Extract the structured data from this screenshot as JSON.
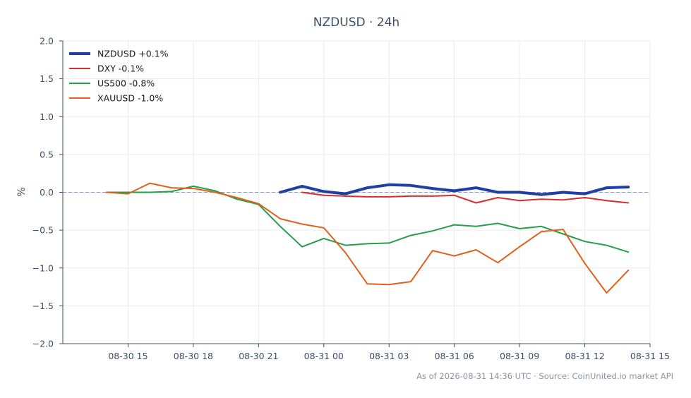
{
  "chart_data": {
    "type": "line",
    "title": "NZDUSD · 24h",
    "xlabel": "",
    "ylabel": "%",
    "ylim": [
      -2.0,
      2.0
    ],
    "yticks": [
      2.0,
      1.5,
      1.0,
      0.5,
      0.0,
      -0.5,
      -1.0,
      -1.5,
      -2.0
    ],
    "ytick_labels": [
      "2.0",
      "1.5",
      "1.0",
      "0.5",
      "0.0",
      "−0.5",
      "−1.0",
      "−1.5",
      "−2.0"
    ],
    "xlim": [
      "2026-08-30 12:00",
      "2026-08-31 15:00"
    ],
    "xticks": [
      "2026-08-30 15:00",
      "2026-08-30 18:00",
      "2026-08-30 21:00",
      "2026-08-31 00:00",
      "2026-08-31 03:00",
      "2026-08-31 06:00",
      "2026-08-31 09:00",
      "2026-08-31 12:00",
      "2026-08-31 15:00"
    ],
    "xtick_labels": [
      "08-30 15",
      "08-30 18",
      "08-30 21",
      "08-31 00",
      "08-31 03",
      "08-31 06",
      "08-31 09",
      "08-31 12",
      "08-31 15"
    ],
    "grid": true,
    "zero_line": true,
    "legend_position": "top-left",
    "series": [
      {
        "name": "NZDUSD +0.1%",
        "color": "#1f3fa6",
        "emphasis": true,
        "x": [
          "2026-08-30 22:00",
          "2026-08-30 23:00",
          "2026-08-31 00:00",
          "2026-08-31 01:00",
          "2026-08-31 02:00",
          "2026-08-31 03:00",
          "2026-08-31 04:00",
          "2026-08-31 05:00",
          "2026-08-31 06:00",
          "2026-08-31 07:00",
          "2026-08-31 08:00",
          "2026-08-31 09:00",
          "2026-08-31 10:00",
          "2026-08-31 11:00",
          "2026-08-31 12:00",
          "2026-08-31 13:00",
          "2026-08-31 14:00"
        ],
        "values": [
          0.0,
          0.08,
          0.01,
          -0.02,
          0.06,
          0.1,
          0.09,
          0.05,
          0.02,
          0.06,
          0.0,
          0.0,
          -0.03,
          0.0,
          -0.02,
          0.06,
          0.07
        ]
      },
      {
        "name": "DXY -0.1%",
        "color": "#d62e2e",
        "emphasis": false,
        "x": [
          "2026-08-30 23:00",
          "2026-08-31 00:00",
          "2026-08-31 01:00",
          "2026-08-31 02:00",
          "2026-08-31 03:00",
          "2026-08-31 04:00",
          "2026-08-31 05:00",
          "2026-08-31 06:00",
          "2026-08-31 07:00",
          "2026-08-31 08:00",
          "2026-08-31 09:00",
          "2026-08-31 10:00",
          "2026-08-31 11:00",
          "2026-08-31 12:00",
          "2026-08-31 13:00",
          "2026-08-31 14:00"
        ],
        "values": [
          0.0,
          -0.04,
          -0.05,
          -0.06,
          -0.06,
          -0.05,
          -0.05,
          -0.04,
          -0.14,
          -0.07,
          -0.11,
          -0.09,
          -0.1,
          -0.07,
          -0.11,
          -0.14
        ]
      },
      {
        "name": "US500 -0.8%",
        "color": "#23a047",
        "emphasis": false,
        "x": [
          "2026-08-30 14:00",
          "2026-08-30 15:00",
          "2026-08-30 16:00",
          "2026-08-30 17:00",
          "2026-08-30 18:00",
          "2026-08-30 19:00",
          "2026-08-30 20:00",
          "2026-08-30 21:00",
          "2026-08-30 22:00",
          "2026-08-30 23:00",
          "2026-08-31 00:00",
          "2026-08-31 01:00",
          "2026-08-31 02:00",
          "2026-08-31 03:00",
          "2026-08-31 04:00",
          "2026-08-31 05:00",
          "2026-08-31 06:00",
          "2026-08-31 07:00",
          "2026-08-31 08:00",
          "2026-08-31 09:00",
          "2026-08-31 10:00",
          "2026-08-31 11:00",
          "2026-08-31 12:00",
          "2026-08-31 13:00",
          "2026-08-31 14:00"
        ],
        "values": [
          0.0,
          0.0,
          0.0,
          0.01,
          0.08,
          0.02,
          -0.09,
          -0.16,
          -0.45,
          -0.72,
          -0.61,
          -0.7,
          -0.68,
          -0.67,
          -0.57,
          -0.51,
          -0.43,
          -0.45,
          -0.41,
          -0.48,
          -0.45,
          -0.55,
          -0.65,
          -0.7,
          -0.79
        ]
      },
      {
        "name": "XAUUSD -1.0%",
        "color": "#e0611d",
        "emphasis": false,
        "x": [
          "2026-08-30 14:00",
          "2026-08-30 15:00",
          "2026-08-30 16:00",
          "2026-08-30 17:00",
          "2026-08-30 18:00",
          "2026-08-30 19:00",
          "2026-08-30 20:00",
          "2026-08-30 21:00",
          "2026-08-30 22:00",
          "2026-08-30 23:00",
          "2026-08-31 00:00",
          "2026-08-31 01:00",
          "2026-08-31 02:00",
          "2026-08-31 03:00",
          "2026-08-31 04:00",
          "2026-08-31 05:00",
          "2026-08-31 06:00",
          "2026-08-31 07:00",
          "2026-08-31 08:00",
          "2026-08-31 09:00",
          "2026-08-31 10:00",
          "2026-08-31 11:00",
          "2026-08-31 12:00",
          "2026-08-31 13:00",
          "2026-08-31 14:00"
        ],
        "values": [
          0.0,
          -0.02,
          0.12,
          0.06,
          0.05,
          0.0,
          -0.07,
          -0.15,
          -0.35,
          -0.42,
          -0.47,
          -0.8,
          -1.21,
          -1.22,
          -1.18,
          -0.77,
          -0.84,
          -0.76,
          -0.93,
          -0.72,
          -0.52,
          -0.49,
          -0.94,
          -1.33,
          -1.03
        ]
      }
    ],
    "footer": "As of 2026-08-31 14:36 UTC · Source: CoinUnited.io market API"
  }
}
